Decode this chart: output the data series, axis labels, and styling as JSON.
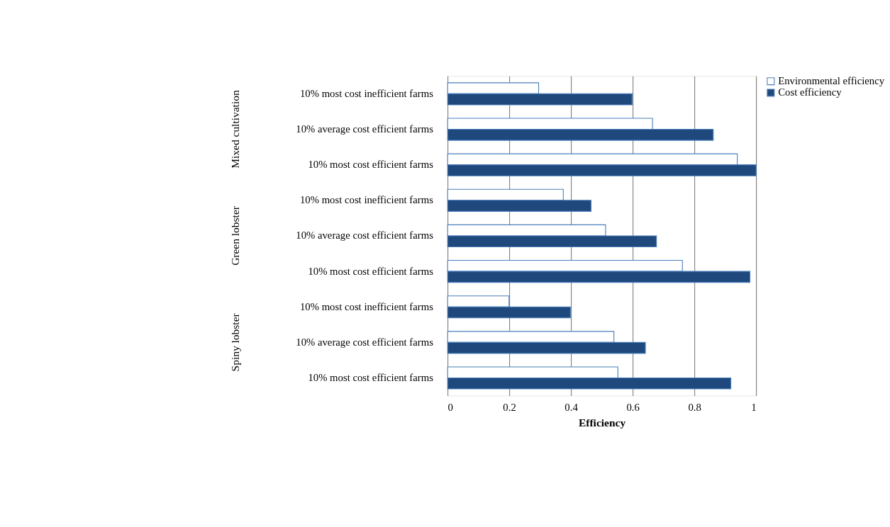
{
  "chart_data": {
    "type": "bar",
    "orientation": "horizontal",
    "categories": [
      "10% most cost inefficient farms",
      "10% average cost efficient farms",
      "10% most cost efficient farms",
      "10% most cost inefficient farms",
      "10% average cost efficient farms",
      "10% most cost efficient farms",
      "10% most cost inefficient farms",
      "10% average cost efficient farms",
      "10% most cost efficient farms"
    ],
    "series": [
      {
        "name": "Environmental efficiency",
        "color": "#ffffff",
        "values": [
          0.295,
          0.664,
          0.939,
          0.375,
          0.512,
          0.761,
          0.199,
          0.539,
          0.552
        ]
      },
      {
        "name": "Cost efficiency",
        "color": "#1f497d",
        "values": [
          0.598,
          0.861,
          1.0,
          0.465,
          0.677,
          0.98,
          0.398,
          0.641,
          0.918
        ]
      }
    ],
    "annotations": [
      "Mixed cultivation",
      "Green lobster",
      "Spiny lobster"
    ],
    "xlabel": "Efficiency",
    "xlim": [
      0,
      1
    ],
    "xticks": [
      0,
      0.2,
      0.4,
      0.6,
      0.8,
      1
    ],
    "grid": "x",
    "legend": "right"
  }
}
